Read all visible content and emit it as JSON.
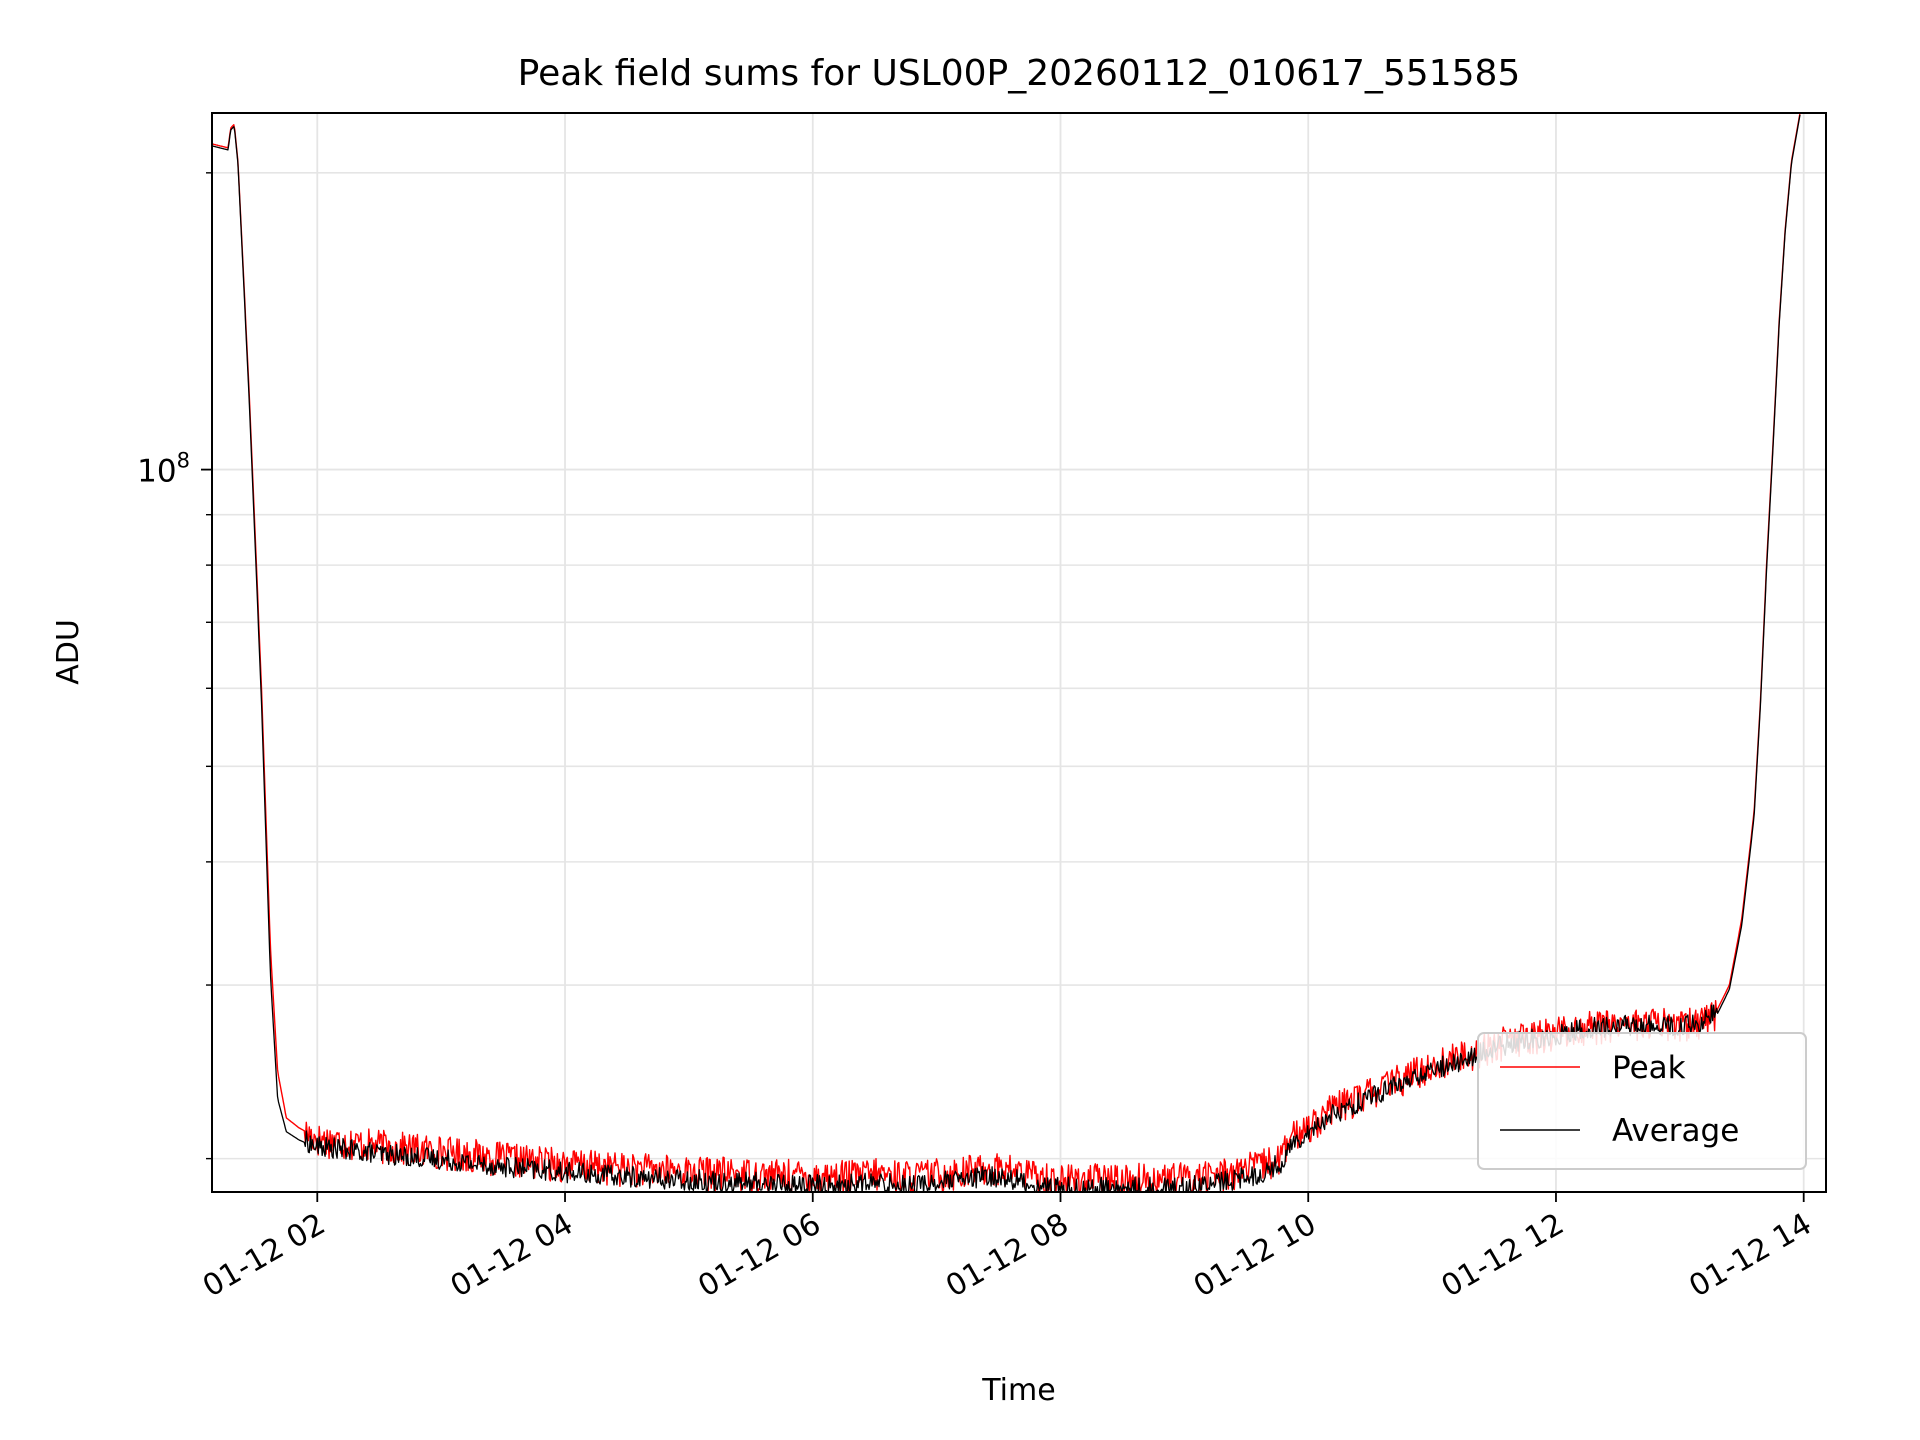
{
  "chart_data": {
    "type": "line",
    "title": "Peak field sums for USL00P_20260112_010617_551585",
    "xlabel": "Time",
    "ylabel": "ADU",
    "x_unit": "hours since 2026-01-12 00:00",
    "xlim": [
      1.15,
      14.18
    ],
    "ylim": [
      18500000,
      230000000
    ],
    "yscale": "log",
    "grid": true,
    "x_tick_values": [
      2,
      4,
      6,
      8,
      10,
      12,
      14
    ],
    "x_tick_labels": [
      "01-12 02",
      "01-12 04",
      "01-12 06",
      "01-12 08",
      "01-12 10",
      "01-12 12",
      "01-12 14"
    ],
    "y_major_ticks": [
      {
        "value": 100000000,
        "base": "10",
        "exponent": "8"
      }
    ],
    "y_minor_ticks": [
      20000000,
      30000000,
      40000000,
      50000000,
      60000000,
      70000000,
      80000000,
      90000000,
      200000000
    ],
    "legend": {
      "position": "lower-right",
      "entries": [
        "Peak",
        "Average"
      ]
    },
    "colors": {
      "Peak": "#ff0000",
      "Average": "#000000"
    },
    "series": [
      {
        "name": "Peak",
        "color": "#ff0000",
        "noise": [
          0.035,
          0.045
        ],
        "x": [
          1.15,
          1.28,
          1.3,
          1.33,
          1.36,
          1.45,
          1.55,
          1.62,
          1.68,
          1.75,
          1.85,
          2.0,
          2.3,
          2.6,
          3.0,
          3.3,
          3.6,
          4.0,
          4.5,
          5.0,
          5.5,
          6.0,
          6.3,
          6.5,
          6.6,
          6.8,
          7.0,
          7.2,
          7.4,
          7.5,
          7.6,
          7.8,
          8.0,
          8.5,
          9.0,
          9.3,
          9.6,
          9.78,
          9.85,
          10.0,
          10.2,
          10.5,
          10.8,
          11.0,
          11.3,
          11.6,
          11.8,
          12.0,
          12.2,
          12.5,
          12.8,
          13.0,
          13.15,
          13.3,
          13.4,
          13.5,
          13.6,
          13.65,
          13.7,
          13.75,
          13.8,
          13.85,
          13.9,
          13.97
        ],
        "y": [
          214000000,
          212000000,
          222000000,
          224000000,
          205000000,
          120000000,
          60000000,
          33000000,
          24500000,
          22000000,
          21500000,
          21000000,
          20800000,
          20600000,
          20400000,
          20200000,
          20000000,
          19800000,
          19600000,
          19450000,
          19350000,
          19250000,
          19250000,
          19350000,
          19300000,
          19250000,
          19350000,
          19450000,
          19600000,
          19600000,
          19500000,
          19250000,
          19100000,
          19100000,
          19150000,
          19350000,
          19700000,
          20100000,
          20900000,
          21700000,
          22500000,
          23400000,
          24300000,
          24900000,
          25600000,
          26400000,
          26600000,
          26900000,
          27200000,
          27500000,
          27500000,
          27400000,
          27600000,
          28300000,
          30000000,
          35000000,
          45000000,
          58000000,
          80000000,
          105000000,
          140000000,
          175000000,
          205000000,
          230000000
        ]
      },
      {
        "name": "Average",
        "color": "#000000",
        "noise": [
          0.03,
          0.02
        ],
        "x": [
          1.15,
          1.28,
          1.3,
          1.33,
          1.36,
          1.45,
          1.55,
          1.62,
          1.68,
          1.75,
          1.85,
          2.0,
          2.3,
          2.6,
          3.0,
          3.3,
          3.6,
          4.0,
          4.5,
          5.0,
          5.5,
          6.0,
          6.3,
          6.5,
          6.6,
          6.8,
          7.0,
          7.2,
          7.4,
          7.5,
          7.6,
          7.8,
          8.0,
          8.5,
          9.0,
          9.3,
          9.6,
          9.78,
          9.85,
          10.0,
          10.2,
          10.5,
          10.8,
          11.0,
          11.3,
          11.6,
          11.8,
          12.0,
          12.2,
          12.5,
          12.8,
          13.0,
          13.15,
          13.3,
          13.4,
          13.5,
          13.6,
          13.65,
          13.7,
          13.75,
          13.8,
          13.85,
          13.9,
          13.97
        ],
        "y": [
          213000000,
          211000000,
          221000000,
          223000000,
          204000000,
          118000000,
          58000000,
          31000000,
          23000000,
          21300000,
          20900000,
          20500000,
          20300000,
          20100000,
          19900000,
          19700000,
          19500000,
          19300000,
          19100000,
          18950000,
          18850000,
          18750000,
          18750000,
          18850000,
          18800000,
          18750000,
          18850000,
          18950000,
          19100000,
          19100000,
          19000000,
          18750000,
          18600000,
          18600000,
          18650000,
          18850000,
          19200000,
          19700000,
          20500000,
          21300000,
          22100000,
          23000000,
          23900000,
          24500000,
          25200000,
          26000000,
          26300000,
          26600000,
          26900000,
          27200000,
          27200000,
          27100000,
          27300000,
          28000000,
          29700000,
          34500000,
          44500000,
          57500000,
          79000000,
          104000000,
          139000000,
          174000000,
          204000000,
          229000000
        ]
      }
    ]
  }
}
